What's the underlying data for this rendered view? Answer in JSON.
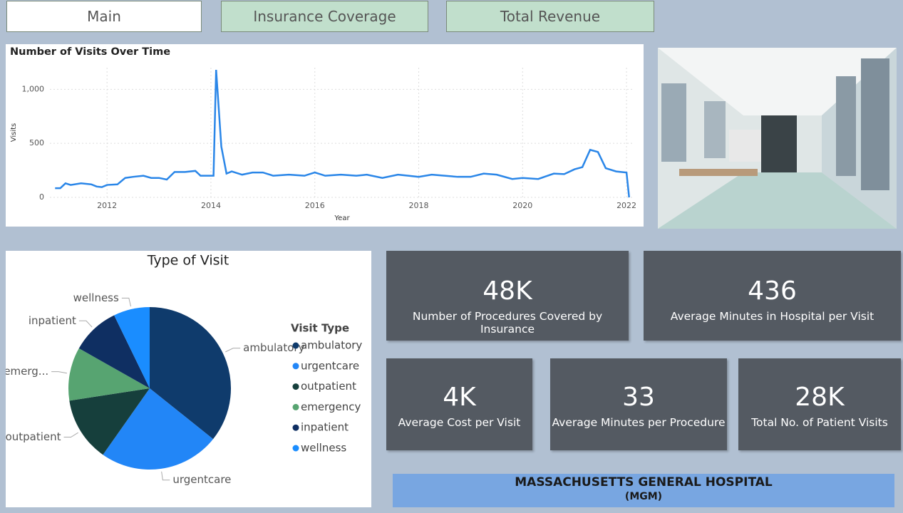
{
  "nav": {
    "buttons": [
      "Main",
      "Insurance Coverage",
      "Total Revenue"
    ]
  },
  "chart_data": [
    {
      "type": "line",
      "title": "Number of Visits Over Time",
      "xlabel": "Year",
      "ylabel": "Visits",
      "color": "#2a86e8",
      "grid": true,
      "x": [
        2011.0,
        2011.1,
        2011.2,
        2011.3,
        2011.5,
        2011.7,
        2011.8,
        2011.9,
        2012.0,
        2012.2,
        2012.35,
        2012.5,
        2012.7,
        2012.85,
        2013.0,
        2013.15,
        2013.3,
        2013.5,
        2013.7,
        2013.8,
        2014.0,
        2014.05,
        2014.1,
        2014.2,
        2014.3,
        2014.4,
        2014.6,
        2014.8,
        2015.0,
        2015.2,
        2015.5,
        2015.8,
        2016.0,
        2016.2,
        2016.5,
        2016.8,
        2017.0,
        2017.3,
        2017.6,
        2017.8,
        2018.0,
        2018.25,
        2018.5,
        2018.75,
        2019.0,
        2019.25,
        2019.5,
        2019.8,
        2020.0,
        2020.3,
        2020.6,
        2020.8,
        2021.0,
        2021.15,
        2021.3,
        2021.45,
        2021.6,
        2021.8,
        2022.0,
        2022.05
      ],
      "values": [
        85,
        85,
        130,
        115,
        130,
        120,
        100,
        95,
        115,
        120,
        180,
        190,
        200,
        180,
        180,
        165,
        235,
        235,
        245,
        200,
        200,
        200,
        1180,
        470,
        220,
        240,
        210,
        230,
        230,
        200,
        210,
        200,
        230,
        200,
        210,
        200,
        210,
        180,
        210,
        200,
        190,
        210,
        200,
        190,
        190,
        220,
        210,
        170,
        180,
        170,
        220,
        215,
        260,
        280,
        440,
        420,
        270,
        240,
        230,
        0
      ],
      "xlim": [
        2010.9,
        2022.15
      ],
      "ylim": [
        0,
        1200
      ],
      "xticks": [
        2012,
        2014,
        2016,
        2018,
        2020,
        2022
      ],
      "yticks": [
        0,
        500,
        {
          "value": 1000,
          "label": "1,000"
        }
      ]
    },
    {
      "type": "pie",
      "title": "Type of Visit",
      "legend_title": "Visit Type",
      "legend": "right",
      "categories": [
        "ambulatory",
        "urgentcare",
        "outpatient",
        "emergency",
        "inpatient",
        "wellness"
      ],
      "slice_labels": [
        "ambulatory",
        "urgentcare",
        "outpatient",
        "emerg...",
        "inpatient",
        "wellness"
      ],
      "values": [
        35.7,
        24,
        12.8,
        10.6,
        9.6,
        7.2
      ],
      "colors": [
        "#0f3b6c",
        "#2286f7",
        "#163f3c",
        "#57a471",
        "#0f2f62",
        "#1a8dff"
      ]
    }
  ],
  "cards": [
    {
      "value": "48K",
      "label": "Number of Procedures Covered by Insurance"
    },
    {
      "value": "436",
      "label": "Average Minutes in Hospital per Visit"
    },
    {
      "value": "4K",
      "label": "Average Cost per Visit"
    },
    {
      "value": "33",
      "label": "Average Minutes per Procedure"
    },
    {
      "value": "28K",
      "label": "Total No. of Patient Visits"
    }
  ],
  "footer": {
    "title": "MASSACHUSETTS GENERAL HOSPITAL",
    "subtitle": "(MGM)"
  }
}
